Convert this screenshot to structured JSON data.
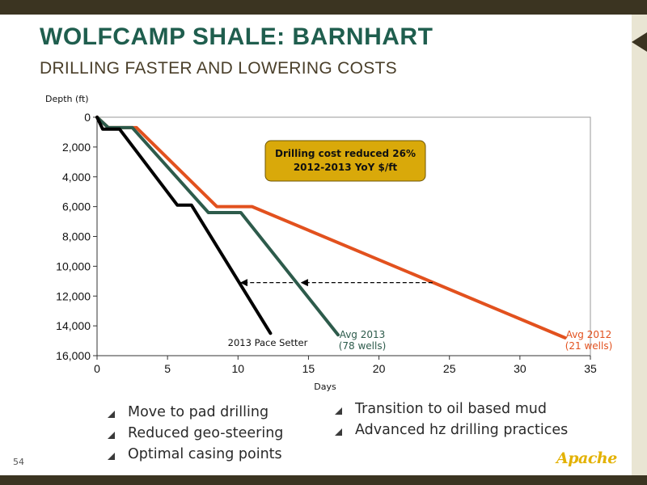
{
  "slide": {
    "title": "WOLFCAMP SHALE: BARNHART",
    "subtitle": "DRILLING FASTER AND LOWERING COSTS",
    "page_number": "54",
    "logo_text": "Apache"
  },
  "bullets_left": [
    "Move to pad drilling",
    "Reduced geo-steering",
    "Optimal casing points"
  ],
  "bullets_right": [
    "Transition to oil based mud",
    "Advanced hz drilling practices"
  ],
  "colors": {
    "title": "#1f5e4e",
    "avg_2012": "#e2511e",
    "avg_2013": "#2d5b4b",
    "pace_setter": "#000000",
    "callout_fill": "#d9a90a",
    "logo": "#e3b100"
  },
  "chart_data": {
    "type": "line",
    "ylabel": "Depth (ft)",
    "xlabel": "Days",
    "xlim": [
      0,
      35
    ],
    "ylim": [
      0,
      16000
    ],
    "y_inverted": true,
    "x_ticks": [
      "0",
      "5",
      "10",
      "15",
      "20",
      "25",
      "30",
      "35"
    ],
    "y_ticks": [
      "0",
      "2,000",
      "4,000",
      "6,000",
      "8,000",
      "10,000",
      "12,000",
      "14,000",
      "16,000"
    ],
    "series": [
      {
        "name": "Avg 2012 (21 wells)",
        "label_lines": [
          "Avg 2012",
          "(21 wells)"
        ],
        "color": "#e2511e",
        "points": [
          [
            0,
            0
          ],
          [
            0.8,
            700
          ],
          [
            2.8,
            700
          ],
          [
            8.5,
            6000
          ],
          [
            11,
            6000
          ],
          [
            33.2,
            14800
          ]
        ]
      },
      {
        "name": "Avg 2013 (78 wells)",
        "label_lines": [
          "Avg 2013",
          "(78 wells)"
        ],
        "color": "#2d5b4b",
        "points": [
          [
            0,
            0
          ],
          [
            0.8,
            700
          ],
          [
            2.5,
            700
          ],
          [
            7.9,
            6400
          ],
          [
            10.2,
            6400
          ],
          [
            17.1,
            14600
          ]
        ]
      },
      {
        "name": "2013 Pace Setter",
        "label_lines": [
          "2013 Pace Setter"
        ],
        "color": "#000000",
        "points": [
          [
            0,
            0
          ],
          [
            0.4,
            800
          ],
          [
            1.6,
            800
          ],
          [
            5.7,
            5900
          ],
          [
            6.7,
            5900
          ],
          [
            12.3,
            14500
          ]
        ]
      }
    ],
    "annotations": {
      "callout_lines": [
        "Drilling cost reduced 26%",
        "2012-2013 YoY $/ft"
      ],
      "arrows": [
        {
          "from": [
            23.8,
            11100
          ],
          "to": [
            14.5,
            11100
          ]
        },
        {
          "from": [
            13.9,
            11100
          ],
          "to": [
            10.2,
            11100
          ]
        }
      ]
    }
  }
}
